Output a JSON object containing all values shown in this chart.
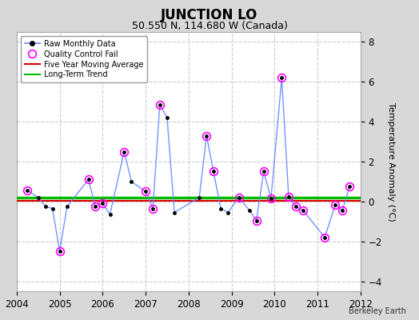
{
  "title": "JUNCTION LO",
  "subtitle": "50.550 N, 114.680 W (Canada)",
  "credit": "Berkeley Earth",
  "ylabel": "Temperature Anomaly (°C)",
  "ylim": [
    -4.5,
    8.5
  ],
  "xlim": [
    2004,
    2012
  ],
  "yticks": [
    -4,
    -2,
    0,
    2,
    4,
    6,
    8
  ],
  "xticks": [
    2004,
    2005,
    2006,
    2007,
    2008,
    2009,
    2010,
    2011,
    2012
  ],
  "long_term_trend_y": 0.18,
  "five_year_avg_y": 0.05,
  "raw_x": [
    2004.25,
    2004.5,
    2004.67,
    2004.83,
    2005.0,
    2005.17,
    2005.67,
    2005.83,
    2006.0,
    2006.17,
    2006.5,
    2006.67,
    2007.0,
    2007.17,
    2007.33,
    2007.5,
    2007.67,
    2008.25,
    2008.42,
    2008.58,
    2008.75,
    2008.92,
    2009.17,
    2009.42,
    2009.58,
    2009.75,
    2009.92,
    2010.17,
    2010.33,
    2010.5,
    2010.67,
    2011.17,
    2011.42,
    2011.58,
    2011.75
  ],
  "raw_y": [
    0.55,
    0.2,
    -0.25,
    -0.35,
    -2.5,
    -0.25,
    1.1,
    -0.25,
    -0.1,
    -0.65,
    2.5,
    1.0,
    0.5,
    -0.35,
    4.85,
    4.2,
    -0.55,
    0.2,
    3.3,
    1.5,
    -0.35,
    -0.55,
    0.2,
    -0.45,
    -0.95,
    1.5,
    0.15,
    6.2,
    0.25,
    -0.25,
    -0.45,
    -1.8,
    -0.15,
    -0.45,
    0.75
  ],
  "qc_fail_x": [
    2004.25,
    2005.0,
    2005.67,
    2005.83,
    2006.0,
    2006.5,
    2007.0,
    2007.17,
    2007.33,
    2008.42,
    2008.58,
    2009.17,
    2009.58,
    2009.75,
    2009.92,
    2010.17,
    2010.33,
    2010.5,
    2010.67,
    2011.17,
    2011.42,
    2011.58,
    2011.75
  ],
  "qc_fail_y": [
    0.55,
    -2.5,
    1.1,
    -0.25,
    -0.1,
    2.5,
    0.5,
    -0.35,
    4.85,
    3.3,
    1.5,
    0.2,
    -0.95,
    1.5,
    0.15,
    6.2,
    0.25,
    -0.25,
    -0.45,
    -1.8,
    -0.15,
    -0.45,
    0.75
  ],
  "fig_bg_color": "#d8d8d8",
  "plot_bg_color": "#ffffff",
  "line_color": "#6688ff",
  "dot_color": "#000000",
  "qc_color": "#ff00ff",
  "trend_color": "#00bb00",
  "mavg_color": "#dd0000",
  "grid_color": "#cccccc",
  "title_fontsize": 12,
  "subtitle_fontsize": 9,
  "ylabel_fontsize": 8,
  "tick_fontsize": 8.5
}
